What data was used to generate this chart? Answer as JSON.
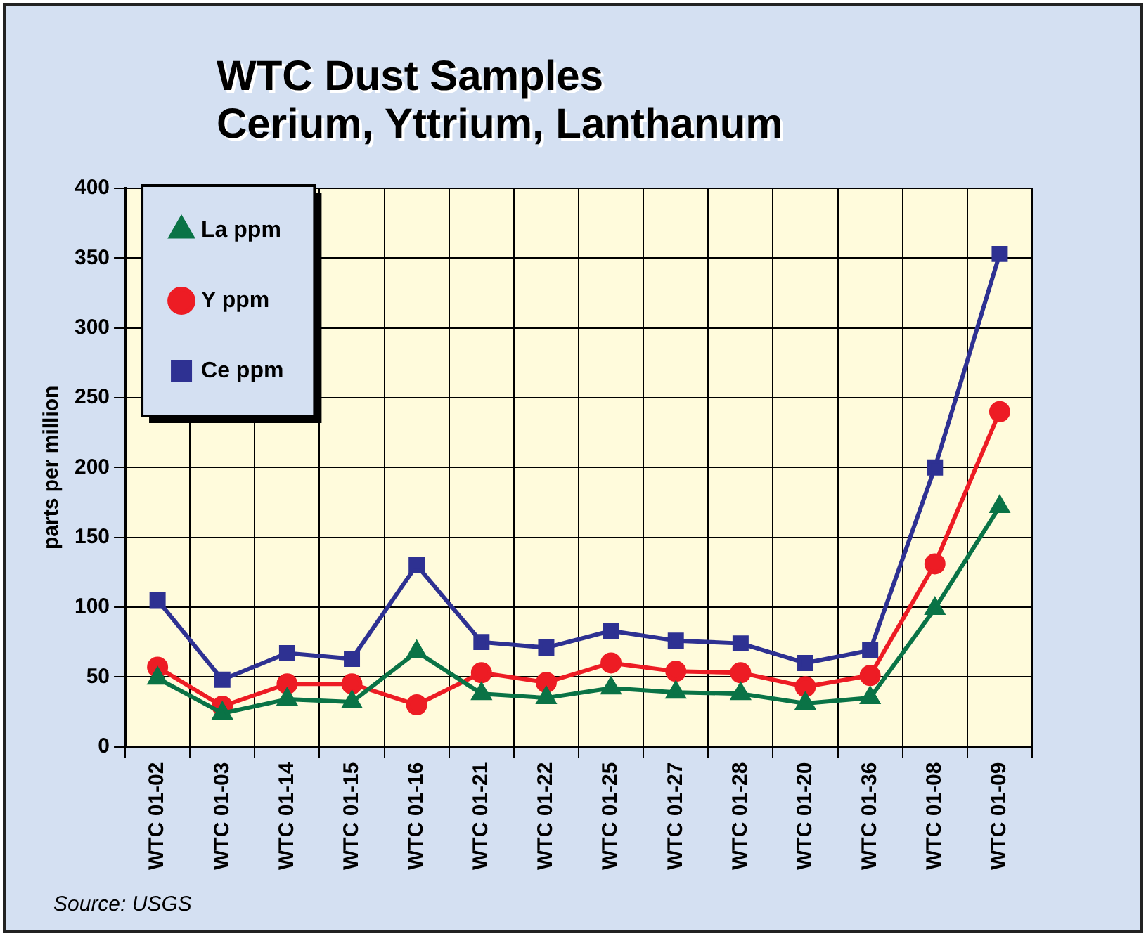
{
  "chart_data": {
    "type": "line",
    "title": "WTC Dust Samples\nCerium, Yttrium, Lanthanum",
    "ylabel": "parts per million",
    "categories": [
      "WTC 01-02",
      "WTC 01-03",
      "WTC 01-14",
      "WTC 01-15",
      "WTC 01-16",
      "WTC 01-21",
      "WTC 01-22",
      "WTC 01-25",
      "WTC 01-27",
      "WTC 01-28",
      "WTC 01-20",
      "WTC 01-36",
      "WTC 01-08",
      "WTC 01-09"
    ],
    "series": [
      {
        "name": "Ce ppm",
        "color": "#2e3192",
        "marker": "square",
        "values": [
          105,
          48,
          67,
          63,
          130,
          75,
          71,
          83,
          76,
          74,
          60,
          69,
          200,
          353
        ]
      },
      {
        "name": "Y ppm",
        "color": "#ed1c24",
        "marker": "circle",
        "values": [
          57,
          29,
          45,
          45,
          30,
          53,
          46,
          60,
          54,
          53,
          43,
          51,
          131,
          240
        ]
      },
      {
        "name": "La ppm",
        "color": "#0a7346",
        "marker": "triangle",
        "values": [
          49,
          24,
          34,
          32,
          68,
          38,
          35,
          42,
          39,
          38,
          31,
          35,
          99,
          172
        ]
      }
    ],
    "ylim": [
      0,
      400
    ],
    "yticks": [
      0,
      50,
      100,
      150,
      200,
      250,
      300,
      350,
      400
    ],
    "grid": true,
    "legend": "top left",
    "annotations": [
      "Source:  USGS"
    ]
  }
}
